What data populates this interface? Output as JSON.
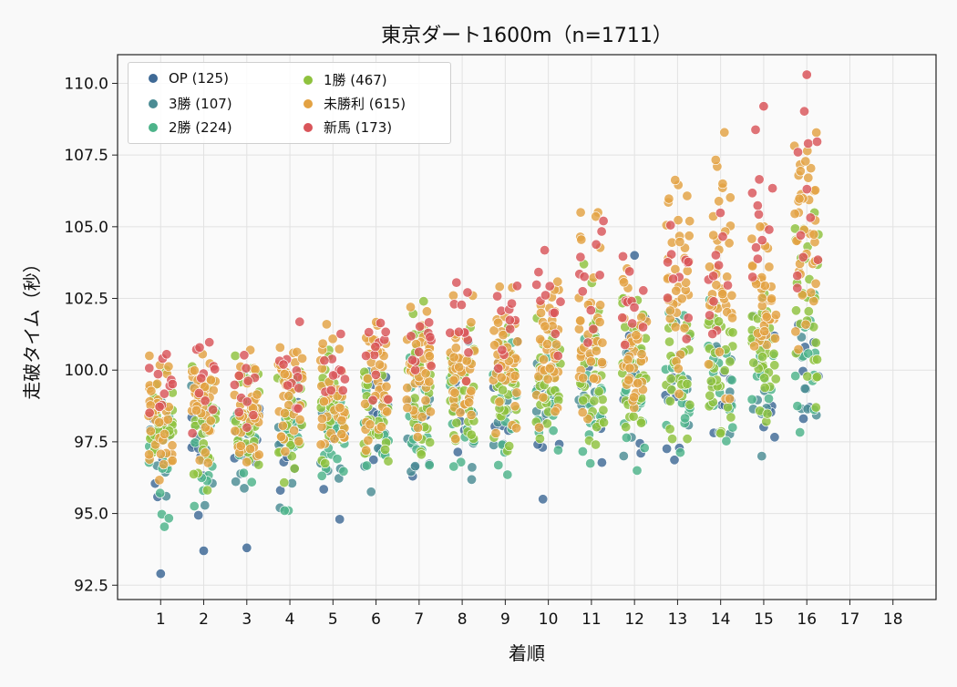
{
  "chart_data": {
    "type": "scatter",
    "title": "東京ダート1600m（n=1711）",
    "xlabel": "着順",
    "ylabel": "走破タイム（秒）",
    "xlim": [
      0,
      19
    ],
    "ylim": [
      92.0,
      111.0
    ],
    "x_ticks": [
      "1",
      "2",
      "3",
      "4",
      "5",
      "6",
      "7",
      "8",
      "9",
      "10",
      "11",
      "12",
      "13",
      "14",
      "15",
      "16",
      "17",
      "18"
    ],
    "y_ticks": [
      "92.5",
      "95.0",
      "97.5",
      "100.0",
      "102.5",
      "105.0",
      "107.5",
      "110.0"
    ],
    "grid": true,
    "legend_position": "top-left",
    "legend_columns": 2,
    "series": [
      {
        "name": "OP",
        "legend_label": "OP (125)",
        "count": 125,
        "color": "#3f6a96",
        "ranges": [
          [
            94.0,
            99.5
          ],
          [
            94.3,
            99.5
          ],
          [
            94.4,
            100.0
          ],
          [
            94.6,
            100.0
          ],
          [
            94.8,
            100.5
          ],
          [
            95.0,
            100.5
          ],
          [
            95.3,
            100.5
          ],
          [
            95.3,
            101.0
          ],
          [
            95.4,
            101.0
          ],
          [
            95.5,
            101.5
          ],
          [
            95.5,
            101.5
          ],
          [
            95.8,
            104.0
          ],
          [
            96.0,
            101.5
          ],
          [
            96.0,
            102.0
          ],
          [
            96.2,
            102.0
          ],
          [
            96.8,
            102.0
          ]
        ],
        "extremes": [
          [
            1,
            92.9
          ],
          [
            2,
            93.7
          ],
          [
            3,
            93.8
          ],
          [
            12,
            104.0
          ]
        ]
      },
      {
        "name": "3勝",
        "legend_label": "3勝 (107)",
        "count": 107,
        "color": "#4b8c94",
        "ranges": [
          [
            94.5,
            99.5
          ],
          [
            94.8,
            99.5
          ],
          [
            95.0,
            100.0
          ],
          [
            95.2,
            100.0
          ],
          [
            95.4,
            100.5
          ],
          [
            95.5,
            100.5
          ],
          [
            95.6,
            101.0
          ],
          [
            95.8,
            101.0
          ],
          [
            96.0,
            101.0
          ],
          [
            96.2,
            101.5
          ],
          [
            96.4,
            101.5
          ],
          [
            96.5,
            102.0
          ],
          [
            96.6,
            102.0
          ],
          [
            96.8,
            102.0
          ],
          [
            97.0,
            102.0
          ],
          [
            97.2,
            102.0
          ]
        ],
        "extremes": []
      },
      {
        "name": "2勝",
        "legend_label": "2勝 (224)",
        "count": 224,
        "color": "#4db38a",
        "ranges": [
          [
            94.4,
            99.5
          ],
          [
            94.7,
            100.0
          ],
          [
            94.9,
            100.0
          ],
          [
            95.1,
            100.0
          ],
          [
            95.3,
            100.5
          ],
          [
            95.5,
            100.5
          ],
          [
            95.8,
            101.0
          ],
          [
            95.9,
            101.0
          ],
          [
            96.0,
            101.0
          ],
          [
            96.2,
            101.5
          ],
          [
            96.4,
            101.5
          ],
          [
            96.5,
            102.0
          ],
          [
            96.7,
            102.0
          ],
          [
            96.8,
            102.5
          ],
          [
            97.0,
            102.5
          ],
          [
            97.4,
            103.0
          ]
        ],
        "extremes": []
      },
      {
        "name": "1勝",
        "legend_label": "1勝 (467)",
        "count": 467,
        "color": "#8fc23e",
        "ranges": [
          [
            95.4,
            100.0
          ],
          [
            95.6,
            100.5
          ],
          [
            95.8,
            100.5
          ],
          [
            96.0,
            100.5
          ],
          [
            96.2,
            101.0
          ],
          [
            96.4,
            101.0
          ],
          [
            96.6,
            102.4
          ],
          [
            96.8,
            101.5
          ],
          [
            97.0,
            101.5
          ],
          [
            97.2,
            102.0
          ],
          [
            97.4,
            103.7
          ],
          [
            97.5,
            102.5
          ],
          [
            97.6,
            102.5
          ],
          [
            97.8,
            103.0
          ],
          [
            98.0,
            103.5
          ],
          [
            98.2,
            106.2
          ]
        ],
        "extremes": []
      },
      {
        "name": "未勝利",
        "legend_label": "未勝利 (615)",
        "count": 615,
        "color": "#e3a243",
        "ranges": [
          [
            96.0,
            100.5
          ],
          [
            96.3,
            101.0
          ],
          [
            96.5,
            101.0
          ],
          [
            96.8,
            101.5
          ],
          [
            97.0,
            101.6
          ],
          [
            97.2,
            101.8
          ],
          [
            97.4,
            102.2
          ],
          [
            97.6,
            102.6
          ],
          [
            97.8,
            103.0
          ],
          [
            98.0,
            103.5
          ],
          [
            98.3,
            105.5
          ],
          [
            98.5,
            104.0
          ],
          [
            98.8,
            107.4
          ],
          [
            99.0,
            108.5
          ],
          [
            99.3,
            105.0
          ],
          [
            99.8,
            109.1
          ]
        ],
        "extremes": []
      },
      {
        "name": "新馬",
        "legend_label": "新馬 (173)",
        "count": 173,
        "color": "#d9555a",
        "ranges": [
          [
            97.5,
            101.1
          ],
          [
            97.8,
            101.2
          ],
          [
            98.0,
            101.2
          ],
          [
            98.2,
            101.7
          ],
          [
            98.5,
            101.7
          ],
          [
            98.8,
            102.2
          ],
          [
            99.0,
            102.5
          ],
          [
            99.4,
            103.4
          ],
          [
            99.6,
            103.9
          ],
          [
            99.8,
            104.9
          ],
          [
            100.2,
            105.2
          ],
          [
            100.5,
            105.2
          ],
          [
            100.8,
            105.6
          ],
          [
            101.0,
            105.6
          ],
          [
            101.5,
            109.2
          ],
          [
            102.0,
            110.3
          ]
        ],
        "extremes": [
          [
            16,
            110.3
          ],
          [
            15,
            109.2
          ]
        ]
      }
    ]
  }
}
